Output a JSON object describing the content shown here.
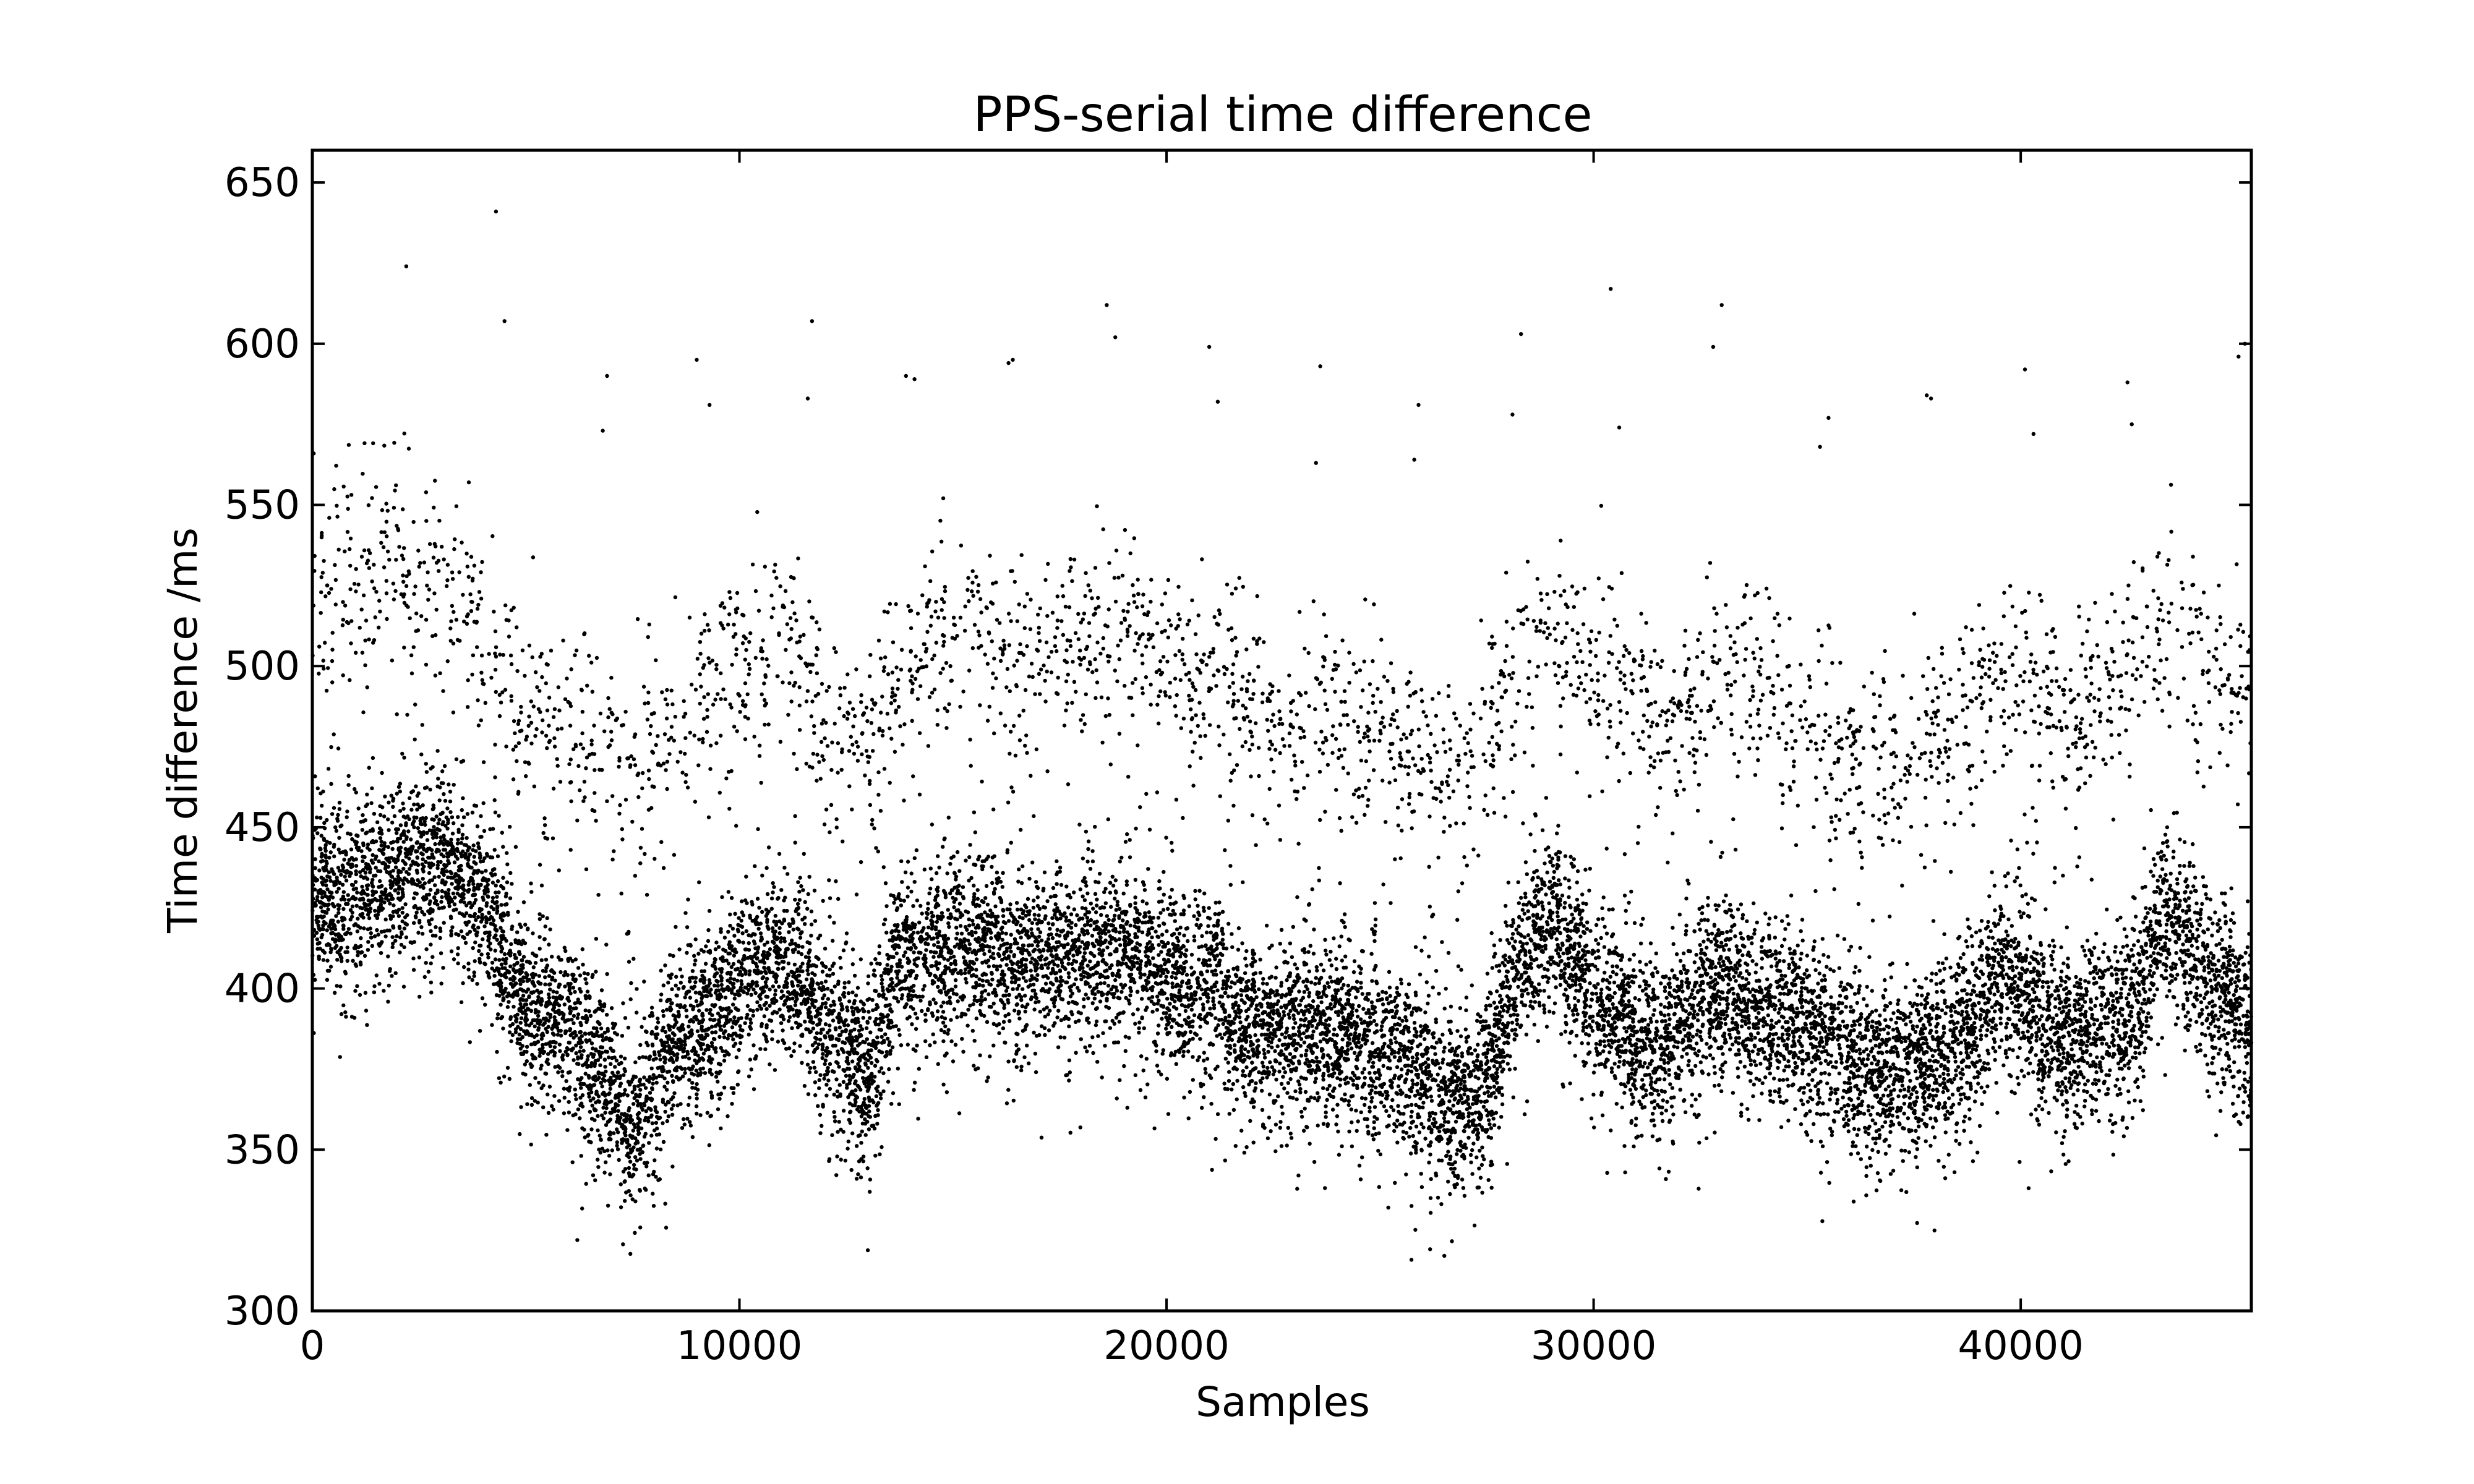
{
  "chart_data": {
    "type": "scatter",
    "title": "PPS-serial time difference",
    "xlabel": "Samples",
    "ylabel": "Time difference /ms",
    "xlim": [
      0,
      45400
    ],
    "ylim": [
      300,
      660
    ],
    "xticks": [
      0,
      10000,
      20000,
      30000,
      40000
    ],
    "yticks": [
      300,
      350,
      400,
      450,
      500,
      550,
      600,
      650
    ],
    "grid": false,
    "legend": "none",
    "marker_color": "#000000",
    "series": [
      {
        "lower_band_trend": [
          [
            0,
            428
          ],
          [
            1000,
            430
          ],
          [
            2000,
            436
          ],
          [
            3000,
            440
          ],
          [
            4000,
            428
          ],
          [
            4500,
            410
          ],
          [
            5000,
            395
          ],
          [
            6000,
            388
          ],
          [
            6500,
            380
          ],
          [
            7000,
            370
          ],
          [
            7500,
            355
          ],
          [
            8000,
            372
          ],
          [
            8500,
            385
          ],
          [
            9000,
            388
          ],
          [
            9500,
            395
          ],
          [
            10000,
            405
          ],
          [
            11000,
            408
          ],
          [
            11500,
            403
          ],
          [
            12000,
            388
          ],
          [
            12500,
            380
          ],
          [
            13000,
            372
          ],
          [
            13300,
            385
          ],
          [
            13600,
            408
          ],
          [
            14500,
            410
          ],
          [
            15500,
            415
          ],
          [
            16500,
            408
          ],
          [
            17500,
            410
          ],
          [
            18500,
            412
          ],
          [
            19500,
            408
          ],
          [
            20500,
            400
          ],
          [
            21000,
            404
          ],
          [
            21500,
            390
          ],
          [
            22000,
            385
          ],
          [
            23000,
            388
          ],
          [
            24000,
            386
          ],
          [
            25000,
            382
          ],
          [
            26000,
            372
          ],
          [
            26500,
            368
          ],
          [
            27000,
            365
          ],
          [
            27500,
            372
          ],
          [
            28000,
            398
          ],
          [
            28500,
            415
          ],
          [
            29000,
            420
          ],
          [
            29500,
            412
          ],
          [
            30000,
            398
          ],
          [
            30500,
            392
          ],
          [
            31000,
            385
          ],
          [
            31500,
            380
          ],
          [
            32000,
            388
          ],
          [
            33000,
            402
          ],
          [
            34000,
            392
          ],
          [
            35000,
            390
          ],
          [
            35500,
            382
          ],
          [
            36000,
            378
          ],
          [
            36500,
            372
          ],
          [
            37000,
            375
          ],
          [
            38000,
            380
          ],
          [
            39000,
            390
          ],
          [
            39500,
            405
          ],
          [
            40000,
            400
          ],
          [
            40500,
            388
          ],
          [
            41000,
            385
          ],
          [
            42000,
            388
          ],
          [
            42800,
            395
          ],
          [
            43400,
            425
          ],
          [
            44000,
            412
          ],
          [
            44500,
            400
          ],
          [
            45400,
            390
          ]
        ],
        "upper_band_trend": [
          [
            0,
            520
          ],
          [
            1000,
            528
          ],
          [
            2000,
            535
          ],
          [
            3000,
            530
          ],
          [
            4000,
            510
          ],
          [
            4500,
            492
          ],
          [
            5000,
            485
          ],
          [
            6000,
            480
          ],
          [
            7000,
            470
          ],
          [
            7500,
            465
          ],
          [
            8000,
            472
          ],
          [
            9000,
            485
          ],
          [
            10000,
            505
          ],
          [
            11000,
            510
          ],
          [
            11500,
            500
          ],
          [
            12000,
            480
          ],
          [
            13000,
            478
          ],
          [
            13500,
            490
          ],
          [
            14500,
            510
          ],
          [
            15500,
            512
          ],
          [
            16500,
            505
          ],
          [
            17500,
            508
          ],
          [
            18500,
            512
          ],
          [
            19500,
            505
          ],
          [
            20500,
            500
          ],
          [
            21500,
            495
          ],
          [
            22500,
            480
          ],
          [
            23500,
            485
          ],
          [
            24500,
            484
          ],
          [
            25500,
            478
          ],
          [
            26000,
            470
          ],
          [
            27000,
            465
          ],
          [
            28000,
            495
          ],
          [
            29000,
            515
          ],
          [
            30000,
            500
          ],
          [
            31000,
            490
          ],
          [
            32000,
            485
          ],
          [
            33000,
            502
          ],
          [
            34000,
            490
          ],
          [
            35000,
            480
          ],
          [
            36000,
            472
          ],
          [
            37000,
            470
          ],
          [
            38000,
            478
          ],
          [
            39000,
            490
          ],
          [
            40000,
            495
          ],
          [
            41000,
            485
          ],
          [
            42000,
            490
          ],
          [
            43000,
            498
          ],
          [
            43500,
            520
          ],
          [
            44500,
            500
          ],
          [
            45400,
            490
          ]
        ]
      },
      {
        "outliers": [
          [
            2200,
            624
          ],
          [
            4300,
            641
          ],
          [
            4500,
            607
          ],
          [
            6800,
            573
          ],
          [
            6900,
            590
          ],
          [
            9000,
            595
          ],
          [
            9300,
            581
          ],
          [
            11600,
            583
          ],
          [
            11700,
            607
          ],
          [
            13900,
            590
          ],
          [
            14100,
            589
          ],
          [
            16300,
            594
          ],
          [
            16400,
            595
          ],
          [
            18600,
            612
          ],
          [
            18800,
            602
          ],
          [
            21000,
            599
          ],
          [
            21200,
            582
          ],
          [
            23500,
            563
          ],
          [
            23600,
            593
          ],
          [
            25800,
            564
          ],
          [
            25900,
            581
          ],
          [
            28100,
            578
          ],
          [
            28300,
            603
          ],
          [
            30400,
            617
          ],
          [
            30600,
            574
          ],
          [
            32800,
            599
          ],
          [
            33000,
            612
          ],
          [
            35300,
            568
          ],
          [
            35500,
            577
          ],
          [
            37800,
            584
          ],
          [
            37900,
            583
          ],
          [
            40100,
            592
          ],
          [
            40300,
            572
          ],
          [
            42500,
            588
          ],
          [
            42600,
            575
          ],
          [
            45100,
            596
          ],
          [
            45250,
            600
          ]
        ]
      }
    ],
    "n_points_approx": 45400
  }
}
